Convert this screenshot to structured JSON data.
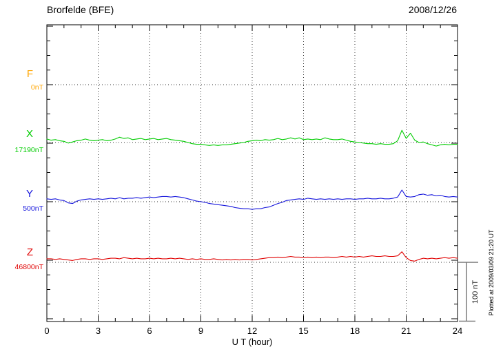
{
  "chart_data": {
    "type": "line",
    "title": "Brorfelde (BFE)",
    "date": "2008/12/26",
    "xlabel": "U T (hour)",
    "x_range": [
      0,
      24
    ],
    "x_ticks": [
      0,
      3,
      6,
      9,
      12,
      15,
      18,
      21,
      24
    ],
    "x_minor_tick_hours": 1,
    "y_minor_tick_nT": 25,
    "grid": "dotted vertical lines every 3 hours; dotted horizontal line at each component baseline",
    "legend_position": "left margin, one colored label per component",
    "scale_bar": {
      "label": "100 nT",
      "nT": 100
    },
    "plotted_note": "Plotted at 2009/03/09 21:20 UT",
    "series": [
      {
        "name": "F",
        "label": "F",
        "value_label": "0nT",
        "base_value_nT": 0,
        "color": "#FFA500",
        "x_start": 0,
        "x_step": 0.25,
        "offsets_nT": []
      },
      {
        "name": "X",
        "label": "X",
        "value_label": "17190nT",
        "base_value_nT": 17190,
        "color": "#00CC00",
        "x_start": 0,
        "x_step": 0.25,
        "offsets_nT": [
          6,
          4,
          5,
          3,
          2,
          -1,
          1,
          3,
          4,
          6,
          4,
          3,
          4,
          5,
          3,
          4,
          6,
          9,
          7,
          8,
          5,
          6,
          7,
          5,
          6,
          7,
          5,
          6,
          7,
          5,
          4,
          3,
          2,
          0,
          -2,
          -3,
          -3,
          -4,
          -5,
          -4,
          -5,
          -4,
          -4,
          -3,
          -2,
          -1,
          0,
          2,
          3,
          4,
          3,
          5,
          4,
          5,
          7,
          5,
          6,
          8,
          6,
          8,
          5,
          6,
          5,
          6,
          5,
          8,
          6,
          5,
          5,
          6,
          4,
          2,
          1,
          0,
          -1,
          -2,
          -2,
          -3,
          -2,
          -3,
          -3,
          -2,
          3,
          21,
          7,
          16,
          4,
          0,
          1,
          -2,
          -4,
          -6,
          -4,
          -3,
          -4,
          -3,
          -3
        ]
      },
      {
        "name": "Y",
        "label": "Y",
        "value_label": "500nT",
        "base_value_nT": 500,
        "color": "#1414DC",
        "x_start": 0,
        "x_step": 0.25,
        "offsets_nT": [
          5,
          4,
          5,
          3,
          2,
          -2,
          -3,
          1,
          3,
          4,
          5,
          4,
          5,
          4,
          5,
          6,
          5,
          7,
          5,
          6,
          6,
          7,
          6,
          7,
          8,
          7,
          8,
          9,
          9,
          8,
          9,
          8,
          7,
          5,
          3,
          1,
          0,
          -1,
          -3,
          -4,
          -5,
          -6,
          -7,
          -8,
          -10,
          -11,
          -12,
          -12,
          -13,
          -12,
          -12,
          -10,
          -9,
          -6,
          -3,
          -1,
          2,
          3,
          4,
          5,
          4,
          6,
          5,
          4,
          5,
          4,
          5,
          4,
          5,
          4,
          5,
          5,
          4,
          5,
          5,
          6,
          5,
          5,
          6,
          5,
          5,
          6,
          8,
          20,
          9,
          8,
          9,
          12,
          13,
          11,
          12,
          10,
          11,
          9,
          8,
          9,
          8
        ]
      },
      {
        "name": "Z",
        "label": "Z",
        "value_label": "46800nT",
        "base_value_nT": 46800,
        "color": "#E00000",
        "x_start": 0,
        "x_step": 0.25,
        "offsets_nT": [
          6,
          6,
          5,
          6,
          5,
          4,
          3,
          5,
          6,
          6,
          5,
          6,
          6,
          5,
          6,
          7,
          7,
          6,
          8,
          7,
          6,
          7,
          6,
          6,
          7,
          6,
          7,
          6,
          6,
          7,
          6,
          7,
          6,
          5,
          6,
          5,
          6,
          5,
          5,
          6,
          5,
          4,
          5,
          4,
          5,
          4,
          5,
          5,
          4,
          5,
          6,
          7,
          8,
          8,
          9,
          8,
          9,
          10,
          9,
          9,
          8,
          9,
          8,
          9,
          8,
          9,
          9,
          8,
          9,
          10,
          9,
          10,
          9,
          10,
          9,
          10,
          11,
          10,
          10,
          11,
          10,
          10,
          11,
          18,
          8,
          3,
          2,
          5,
          7,
          6,
          7,
          6,
          7,
          8,
          7,
          8,
          7
        ]
      }
    ]
  }
}
